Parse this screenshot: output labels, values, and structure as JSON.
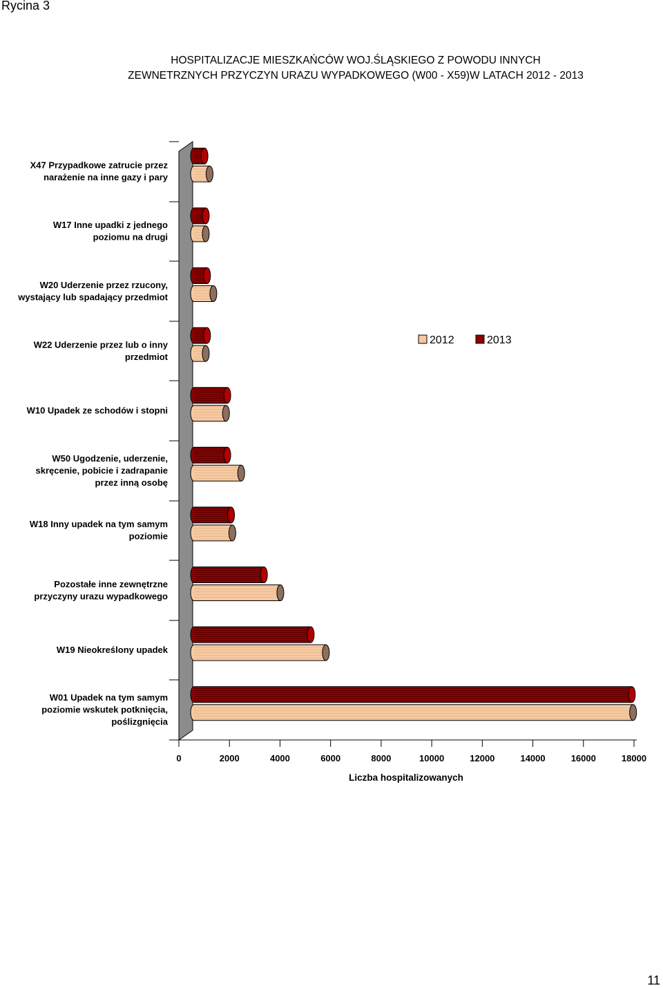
{
  "page": {
    "caption": "Rycina 3",
    "title_line1": "HOSPITALIZACJE MIESZKAŃCÓW WOJ.ŚLĄSKIEGO  Z POWODU INNYCH",
    "title_line2": "ZEWNETRZNYCH PRZYCZYN URAZU WYPADKOWEGO (W00 - X59)W LATACH 2012 - 2013",
    "page_number": "11"
  },
  "chart_data": {
    "type": "bar",
    "orientation": "horizontal",
    "style": "3d-cylinder",
    "title": "HOSPITALIZACJE MIESZKAŃCÓW WOJ.ŚLĄSKIEGO  Z POWODU INNYCH ZEWNETRZNYCH PRZYCZYN URAZU WYPADKOWEGO (W00 - X59)W LATACH 2012 - 2013",
    "xlabel": "Liczba hospitalizowanych",
    "ylabel": "",
    "xlim": [
      0,
      18000
    ],
    "xticks": [
      "0",
      "2000",
      "4000",
      "6000",
      "8000",
      "10000",
      "12000",
      "14000",
      "16000",
      "18000"
    ],
    "legend_position": "right",
    "categories": [
      [
        "X47 Przypadkowe zatrucie przez",
        "narażenie na inne gazy i pary"
      ],
      [
        "W17 Inne upadki z jednego",
        "poziomu na drugi"
      ],
      [
        "W20 Uderzenie przez rzucony,",
        "wystający lub spadający przedmiot"
      ],
      [
        "W22 Uderzenie przez lub o inny",
        "przedmiot"
      ],
      [
        "W10 Upadek ze schodów i stopni"
      ],
      [
        "W50 Ugodzenie, uderzenie,",
        "skręcenie, pobicie i zadrapanie",
        "przez inną osobę"
      ],
      [
        "W18 Inny upadek na tym samym",
        "poziomie"
      ],
      [
        "Pozostałe inne zewnętrzne",
        "przyczyny urazu wypadkowego"
      ],
      [
        "W19 Nieokreślony upadek"
      ],
      [
        "W01 Upadek na tym samym",
        "poziomie wskutek potknięcia,",
        "poślizgnięcia"
      ]
    ],
    "series": [
      {
        "name": "2012",
        "color": "#F5C9A1",
        "values": [
          1050,
          900,
          1200,
          900,
          1700,
          2300,
          1950,
          3850,
          5650,
          17800
        ]
      },
      {
        "name": "2013",
        "color": "#8B0000",
        "values": [
          850,
          900,
          950,
          950,
          1750,
          1750,
          1900,
          3200,
          5050,
          17750
        ]
      }
    ]
  }
}
